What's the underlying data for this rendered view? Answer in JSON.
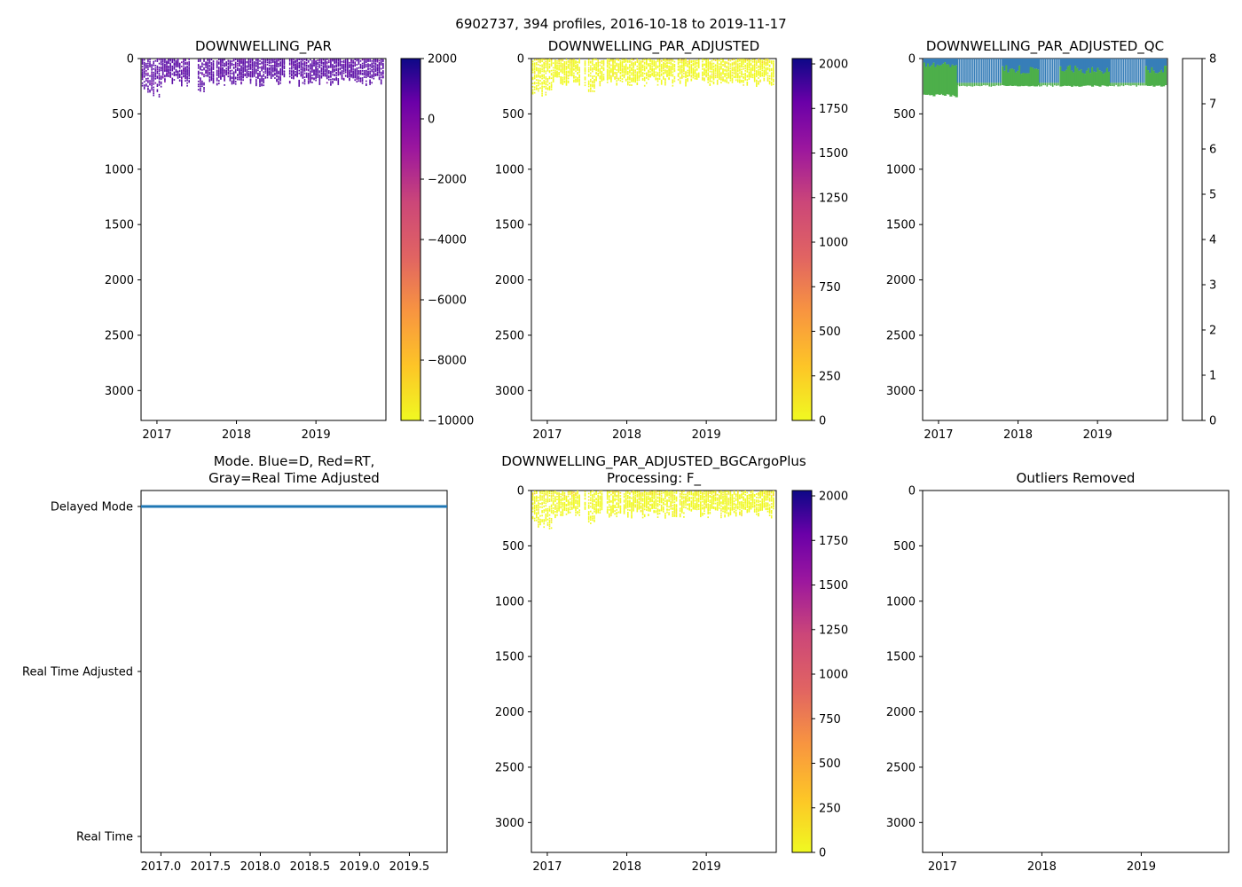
{
  "suptitle": "6902737, 394 profiles, 2016-10-18 to 2019-11-17",
  "chart_data": [
    {
      "id": "par",
      "type": "heatmap",
      "title": "DOWNWELLING_PAR",
      "x_ticks": [
        "2017",
        "2018",
        "2019"
      ],
      "y_ticks": [
        "0",
        "500",
        "1000",
        "1500",
        "2000",
        "2500",
        "3000"
      ],
      "xlim": [
        2016.8,
        2019.88
      ],
      "ylim": [
        3270,
        0
      ],
      "colormap": "plasma_r",
      "colorbar_ticks": [
        "2000",
        "0",
        "−2000",
        "−4000",
        "−6000",
        "−8000",
        "−10000"
      ],
      "colorbar_range": [
        -10000,
        2000
      ],
      "data_depth_range": [
        0,
        350
      ],
      "dominant_value_color": "#5b0ea6"
    },
    {
      "id": "par_adj",
      "type": "heatmap",
      "title": "DOWNWELLING_PAR_ADJUSTED",
      "x_ticks": [
        "2017",
        "2018",
        "2019"
      ],
      "y_ticks": [
        "0",
        "500",
        "1000",
        "1500",
        "2000",
        "2500",
        "3000"
      ],
      "xlim": [
        2016.8,
        2019.88
      ],
      "ylim": [
        3270,
        0
      ],
      "colormap": "plasma_r",
      "colorbar_ticks": [
        "2000",
        "1750",
        "1500",
        "1250",
        "1000",
        "750",
        "500",
        "250",
        "0"
      ],
      "colorbar_range": [
        0,
        2030
      ],
      "data_depth_range": [
        0,
        350
      ],
      "dominant_value_color": "#f0f921"
    },
    {
      "id": "par_adj_qc",
      "type": "heatmap",
      "title": "DOWNWELLING_PAR_ADJUSTED_QC",
      "x_ticks": [
        "2017",
        "2018",
        "2019"
      ],
      "y_ticks": [
        "0",
        "500",
        "1000",
        "1500",
        "2000",
        "2500",
        "3000"
      ],
      "xlim": [
        2016.8,
        2019.88
      ],
      "ylim": [
        3270,
        0
      ],
      "colormap": "Set1",
      "colorbar_ticks": [
        "8",
        "7",
        "6",
        "5",
        "4",
        "3",
        "2",
        "1",
        "0"
      ],
      "colorbar_range": [
        0,
        8
      ],
      "qc_colors": [
        "#e41a1c",
        "#377eb8",
        "#4daf4a",
        "#984ea3",
        "#ff7f00",
        "#ffff33",
        "#a65628",
        "#f781bf",
        "#999999"
      ],
      "data_depth_range": [
        0,
        350
      ]
    },
    {
      "id": "mode",
      "type": "line",
      "title_lines": [
        "Mode. Blue=D, Red=RT,",
        "Gray=Real Time Adjusted"
      ],
      "x_ticks": [
        "2017.0",
        "2017.5",
        "2018.0",
        "2018.5",
        "2019.0",
        "2019.5"
      ],
      "x_tick_values": [
        2017.0,
        2017.5,
        2018.0,
        2018.5,
        2019.0,
        2019.5
      ],
      "xlim": [
        2016.8,
        2019.88
      ],
      "y_categories": [
        "Delayed Mode",
        "Real Time Adjusted",
        "Real Time"
      ],
      "series": [
        {
          "name": "Delayed Mode",
          "color": "#1f77b4",
          "x_range": [
            2016.8,
            2019.88
          ],
          "y": "Delayed Mode"
        }
      ]
    },
    {
      "id": "bgc",
      "type": "heatmap",
      "title_lines": [
        "DOWNWELLING_PAR_ADJUSTED_BGCArgoPlus",
        "Processing: F_"
      ],
      "x_ticks": [
        "2017",
        "2018",
        "2019"
      ],
      "y_ticks": [
        "0",
        "500",
        "1000",
        "1500",
        "2000",
        "2500",
        "3000"
      ],
      "xlim": [
        2016.8,
        2019.88
      ],
      "ylim": [
        3270,
        0
      ],
      "colormap": "plasma_r",
      "colorbar_ticks": [
        "2000",
        "1750",
        "1500",
        "1250",
        "1000",
        "750",
        "500",
        "250",
        "0"
      ],
      "colorbar_range": [
        0,
        2030
      ],
      "data_depth_range": [
        0,
        350
      ],
      "dominant_value_color": "#f0f921"
    },
    {
      "id": "outliers",
      "type": "scatter",
      "title": "Outliers Removed",
      "x_ticks": [
        "2017",
        "2018",
        "2019"
      ],
      "y_ticks": [
        "0",
        "500",
        "1000",
        "1500",
        "2000",
        "2500",
        "3000"
      ],
      "xlim": [
        2016.8,
        2019.88
      ],
      "ylim": [
        3270,
        0
      ],
      "points": []
    }
  ]
}
